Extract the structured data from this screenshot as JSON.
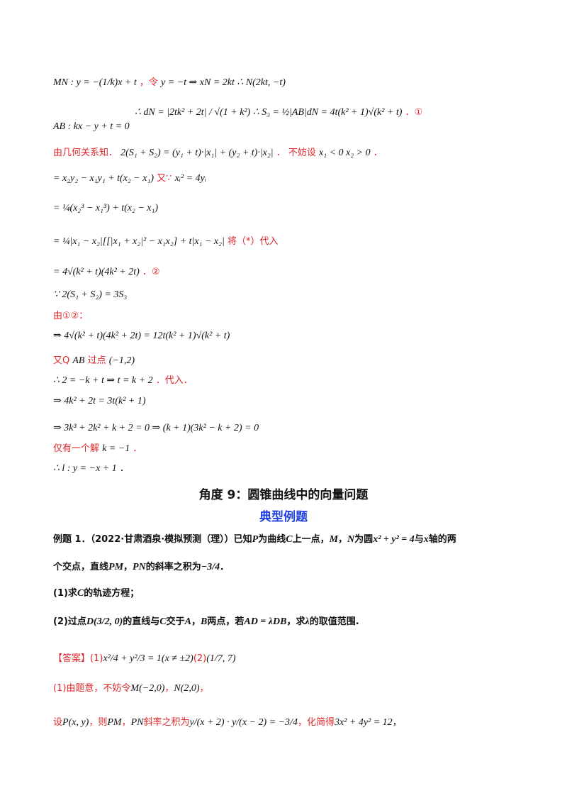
{
  "lines": {
    "l1_math": "MN : y = −(1/k)x + t",
    "l1_red": "，令",
    "l1_math2": "y = −t ⇒ xN = 2kt   ∴ N(2kt, −t)",
    "l2_math": "∴ dN = |2tk² + 2t| / √(1 + k²)    ∴ S₃ = ½|AB|dN = 4t(k² + 1)√(k² + t)",
    "l2_red": "．①",
    "l3_math": "AB : kx − y + t = 0",
    "l4_red": "由几何关系知．",
    "l4_math": "2(S₁ + S₂) = (y₁ + t)·|x₁| + (y₂ + t)·|x₂|",
    "l4_red2": "．  不妨设",
    "l4_math2": "x₁ < 0   x₂ > 0",
    "l4_red3": "．",
    "l5_math": "= x₂y₂ − x₁y₁ + t(x₂ − x₁)",
    "l5_red": "又∵",
    "l5_math2": "xᵢ² = 4yᵢ",
    "l6_math": "= ¼(x₂³ − x₁³) + t(x₂ − x₁)",
    "l7_math": "= ¼|x₁ − x₂|[[|x₁ + x₂|² − x₁x₂] + t|x₁ − x₂|",
    "l7_red": "将（*）代入",
    "l8_math": "= 4√(k² + t)(4k² + 2t)",
    "l8_red": "．②",
    "l9_math": "∵ 2(S₁ + S₂) = 3S₃",
    "l10_red": "由①②：",
    "l11_math": "⇒ 4√(k² + t)(4k² + 2t) = 12t(k² + 1)√(k² + t)",
    "l12_red": "又Q",
    "l12_math": "AB",
    "l12_red2": "过点",
    "l12_math2": "(−1,2)",
    "l13_math": "∴ 2 = −k + t ⇒ t = k + 2",
    "l13_red": "．代入．",
    "l14_math": "⇒ 4k² + 2t = 3t(k² + 1)",
    "l15_math": "⇒ 3k³ + 2k² + k + 2 = 0   ⇒ (k + 1)(3k² − k + 2) = 0",
    "l16_red": "仅有一个解",
    "l16_math": "k = −1",
    "l16_red2": "．",
    "l17_math": "∴ l : y = −x + 1",
    "l17_end": "．"
  },
  "section": {
    "title": "角度 9：圆锥曲线中的向量问题",
    "subtitle": "典型例题"
  },
  "example": {
    "p1a": "例题 1．（2022·甘肃酒泉·模拟预测（理））已知",
    "p1b": "P",
    "p1c": "为曲线",
    "p1d": "C",
    "p1e": "上一点，",
    "p1f": "M",
    "p1g": "，",
    "p1h": "N",
    "p1i": "为圆",
    "p1j": "x² + y² = 4",
    "p1k": "与",
    "p1l": "x",
    "p1m": "轴的两",
    "p2a": "个交点，直线",
    "p2b": "PM",
    "p2c": "，",
    "p2d": "PN",
    "p2e": "的斜率之积为",
    "p2f": "−3/4",
    "p2g": "．",
    "q1a": "(1)求",
    "q1b": "C",
    "q1c": "的轨迹方程；",
    "q2a": "(2)过点",
    "q2b": "D(3/2, 0)",
    "q2c": "的直线与",
    "q2d": "C",
    "q2e": "交于",
    "q2f": "A",
    "q2g": "，",
    "q2h": "B",
    "q2i": "两点，若",
    "q2j": "AD = λDB",
    "q2k": "，求",
    "q2l": "λ",
    "q2m": "的取值范围."
  },
  "answer": {
    "label": "【答案】",
    "a1": "(1)",
    "a1m": "x²/4 + y²/3 = 1(x ≠ ±2)",
    "a2": "(2)",
    "a2m": "(1/7, 7)",
    "s1a": "(1)由题意，不妨令",
    "s1b": "M(−2,0)",
    "s1c": "，",
    "s1d": "N(2,0)",
    "s1e": "，",
    "s2a": "设",
    "s2b": "P(x, y)",
    "s2c": "，则",
    "s2d": "PM",
    "s2e": "，",
    "s2f": "PN",
    "s2g": "斜率之积为",
    "s2h": "y/(x + 2) · y/(x − 2) = −3/4",
    "s2i": "，化简得",
    "s2j": "3x² + 4y² = 12",
    "s2k": "，"
  }
}
